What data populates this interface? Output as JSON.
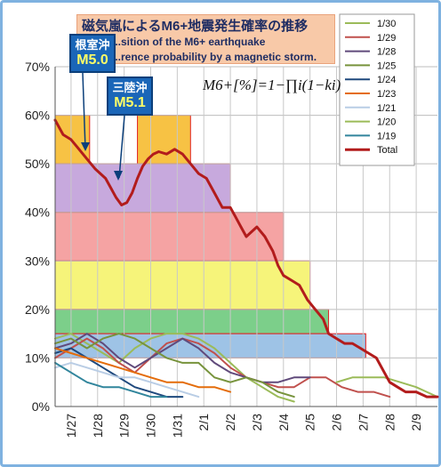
{
  "title": {
    "jp": "磁気嵐によるM6+地震発生確率の推移",
    "en_line1": "...sition of the M6+ earthquake",
    "en_line2": "...rence probability by a magnetic storm."
  },
  "formula": "M6+[%]=1−∏i(1−ki)",
  "callouts": [
    {
      "place": "根室沖",
      "mag": "M5.0"
    },
    {
      "place": "三陸沖",
      "mag": "M5.1"
    }
  ],
  "chart_data": {
    "type": "line",
    "ylim": [
      0,
      70
    ],
    "yticks": [
      "0%",
      "10%",
      "20%",
      "30%",
      "40%",
      "50%",
      "60%",
      "70%"
    ],
    "xticks": [
      "1/27",
      "1/28",
      "1/29",
      "1/30",
      "1/31",
      "2/1",
      "2/2",
      "2/3",
      "2/4",
      "2/5",
      "2/6",
      "2/7",
      "2/8",
      "2/9"
    ],
    "xrange": [
      26.4,
      40.8
    ],
    "grid": true,
    "legend_position": "top-right",
    "legend": [
      {
        "name": "1/30",
        "color": "#9bbb59"
      },
      {
        "name": "1/29",
        "color": "#c0504d"
      },
      {
        "name": "1/28",
        "color": "#604a7b"
      },
      {
        "name": "1/25",
        "color": "#77933c"
      },
      {
        "name": "1/24",
        "color": "#1f497d"
      },
      {
        "name": "1/23",
        "color": "#e46c0a"
      },
      {
        "name": "1/21",
        "color": "#b9cde5"
      },
      {
        "name": "1/20",
        "color": "#9bbb59"
      },
      {
        "name": "1/19",
        "color": "#31859c"
      },
      {
        "name": "Total",
        "color": "#b21c1c"
      }
    ],
    "bands": [
      {
        "x0": 26.4,
        "x1": 27.7,
        "y0": 50,
        "y1": 60,
        "fill": "#f7c244",
        "stroke": "#e02020"
      },
      {
        "x0": 29.5,
        "x1": 31.5,
        "y0": 50,
        "y1": 60,
        "fill": "#f7c244",
        "stroke": "#e02020"
      },
      {
        "x0": 26.4,
        "x1": 33.0,
        "y0": 40,
        "y1": 50,
        "fill": "#c7a9dd",
        "stroke": "#e02020"
      },
      {
        "x0": 26.4,
        "x1": 35.0,
        "y0": 30,
        "y1": 40,
        "fill": "#f5a3a3",
        "stroke": "#e02020"
      },
      {
        "x0": 26.4,
        "x1": 36.0,
        "y0": 20,
        "y1": 30,
        "fill": "#f6f47a",
        "stroke": "#e02020"
      },
      {
        "x0": 26.4,
        "x1": 36.7,
        "y0": 15,
        "y1": 20,
        "fill": "#7ccf8a",
        "stroke": "#e02020"
      },
      {
        "x0": 26.4,
        "x1": 38.1,
        "y0": 10,
        "y1": 15,
        "fill": "#9ec3e6",
        "stroke": "#e02020"
      }
    ],
    "series": [
      {
        "name": "Total",
        "color": "#b21c1c",
        "width": 3,
        "points": [
          [
            26.4,
            59
          ],
          [
            26.7,
            56
          ],
          [
            27.0,
            55
          ],
          [
            27.3,
            53
          ],
          [
            27.6,
            51
          ],
          [
            27.9,
            49
          ],
          [
            28.1,
            48
          ],
          [
            28.3,
            47
          ],
          [
            28.5,
            45
          ],
          [
            28.7,
            43
          ],
          [
            28.9,
            41.5
          ],
          [
            29.1,
            42
          ],
          [
            29.3,
            44
          ],
          [
            29.5,
            47
          ],
          [
            29.7,
            49.5
          ],
          [
            29.9,
            51
          ],
          [
            30.1,
            52
          ],
          [
            30.3,
            52.5
          ],
          [
            30.6,
            52
          ],
          [
            30.9,
            53
          ],
          [
            31.2,
            52
          ],
          [
            31.5,
            50
          ],
          [
            31.8,
            48
          ],
          [
            32.1,
            47
          ],
          [
            32.4,
            44
          ],
          [
            32.7,
            41
          ],
          [
            33.0,
            41
          ],
          [
            33.2,
            39
          ],
          [
            33.4,
            37
          ],
          [
            33.6,
            35
          ],
          [
            33.8,
            36
          ],
          [
            34.0,
            37
          ],
          [
            34.3,
            35
          ],
          [
            34.6,
            32
          ],
          [
            34.8,
            29
          ],
          [
            35.0,
            27
          ],
          [
            35.3,
            26
          ],
          [
            35.6,
            25
          ],
          [
            35.9,
            22
          ],
          [
            36.2,
            20
          ],
          [
            36.5,
            18
          ],
          [
            36.7,
            15
          ],
          [
            37.0,
            14
          ],
          [
            37.3,
            13
          ],
          [
            37.6,
            13
          ],
          [
            37.9,
            12
          ],
          [
            38.2,
            11
          ],
          [
            38.5,
            10
          ],
          [
            38.8,
            7
          ],
          [
            39.0,
            5
          ],
          [
            39.3,
            4
          ],
          [
            39.6,
            3
          ],
          [
            40.0,
            3
          ],
          [
            40.4,
            2
          ],
          [
            40.8,
            2
          ]
        ]
      },
      {
        "name": "1/30",
        "color": "#9bbb59",
        "width": 2,
        "points": [
          [
            26.4,
            14
          ],
          [
            27.0,
            15
          ],
          [
            27.6,
            13
          ],
          [
            28.2,
            11
          ],
          [
            28.8,
            9
          ],
          [
            29.4,
            12
          ],
          [
            30.0,
            14
          ],
          [
            30.6,
            15
          ],
          [
            31.2,
            15
          ],
          [
            31.8,
            14
          ],
          [
            32.4,
            12
          ],
          [
            33.0,
            9
          ],
          [
            33.6,
            6
          ],
          [
            34.2,
            4
          ],
          [
            34.8,
            2
          ],
          [
            35.4,
            1
          ]
        ]
      },
      {
        "name": "1/29",
        "color": "#c0504d",
        "width": 2,
        "points": [
          [
            26.4,
            10
          ],
          [
            27.0,
            12
          ],
          [
            27.6,
            14
          ],
          [
            28.2,
            12
          ],
          [
            28.8,
            9
          ],
          [
            29.4,
            7
          ],
          [
            30.0,
            10
          ],
          [
            30.6,
            13
          ],
          [
            31.2,
            14
          ],
          [
            31.8,
            13
          ],
          [
            32.4,
            11
          ],
          [
            33.0,
            8
          ],
          [
            33.6,
            6
          ],
          [
            34.2,
            5
          ],
          [
            34.8,
            4
          ],
          [
            35.4,
            4
          ],
          [
            36.0,
            6
          ],
          [
            36.6,
            6
          ],
          [
            37.2,
            4
          ],
          [
            37.8,
            3
          ],
          [
            38.4,
            3
          ],
          [
            39.0,
            2
          ]
        ]
      },
      {
        "name": "1/28",
        "color": "#604a7b",
        "width": 2,
        "points": [
          [
            26.4,
            12
          ],
          [
            27.0,
            13
          ],
          [
            27.6,
            15
          ],
          [
            28.2,
            13
          ],
          [
            28.8,
            10
          ],
          [
            29.4,
            8
          ],
          [
            30.0,
            10
          ],
          [
            30.6,
            12
          ],
          [
            31.2,
            14
          ],
          [
            31.8,
            12
          ],
          [
            32.4,
            9
          ],
          [
            33.0,
            7
          ],
          [
            33.6,
            6
          ],
          [
            34.2,
            5
          ],
          [
            34.8,
            5
          ],
          [
            35.4,
            6
          ],
          [
            36.0,
            6
          ]
        ]
      },
      {
        "name": "1/25",
        "color": "#77933c",
        "width": 2,
        "points": [
          [
            26.4,
            13
          ],
          [
            27.0,
            14
          ],
          [
            27.6,
            12
          ],
          [
            28.2,
            14
          ],
          [
            28.8,
            15
          ],
          [
            29.4,
            14
          ],
          [
            30.0,
            12
          ],
          [
            30.6,
            10
          ],
          [
            31.2,
            9
          ],
          [
            31.8,
            9
          ],
          [
            32.4,
            6
          ],
          [
            33.0,
            5
          ],
          [
            33.6,
            6
          ],
          [
            34.2,
            5
          ],
          [
            34.8,
            3
          ],
          [
            35.4,
            2
          ]
        ]
      },
      {
        "name": "1/24",
        "color": "#1f497d",
        "width": 2,
        "points": [
          [
            26.4,
            11
          ],
          [
            27.0,
            12
          ],
          [
            27.6,
            10
          ],
          [
            28.2,
            8
          ],
          [
            28.8,
            6
          ],
          [
            29.4,
            4
          ],
          [
            30.0,
            3
          ],
          [
            30.6,
            2
          ],
          [
            31.2,
            2
          ]
        ]
      },
      {
        "name": "1/23",
        "color": "#e46c0a",
        "width": 2,
        "points": [
          [
            26.4,
            12
          ],
          [
            27.0,
            11
          ],
          [
            27.6,
            10
          ],
          [
            28.2,
            9
          ],
          [
            28.8,
            8
          ],
          [
            29.4,
            7
          ],
          [
            30.0,
            6
          ],
          [
            30.6,
            5
          ],
          [
            31.2,
            5
          ],
          [
            31.8,
            4
          ],
          [
            32.4,
            4
          ],
          [
            33.0,
            3
          ]
        ]
      },
      {
        "name": "1/21",
        "color": "#b9cde5",
        "width": 2,
        "points": [
          [
            26.4,
            8
          ],
          [
            27.0,
            9
          ],
          [
            27.6,
            8
          ],
          [
            28.2,
            7
          ],
          [
            28.8,
            6
          ],
          [
            29.4,
            6
          ],
          [
            30.0,
            5
          ],
          [
            30.6,
            4
          ],
          [
            31.2,
            3
          ],
          [
            31.8,
            2
          ]
        ]
      },
      {
        "name": "1/20",
        "color": "#9bbb59",
        "width": 2,
        "points": [
          [
            37.0,
            5
          ],
          [
            37.6,
            6
          ],
          [
            38.2,
            6
          ],
          [
            38.8,
            6
          ],
          [
            39.4,
            5
          ],
          [
            40.0,
            4
          ],
          [
            40.8,
            2
          ]
        ]
      },
      {
        "name": "1/19",
        "color": "#31859c",
        "width": 2,
        "points": [
          [
            26.4,
            9
          ],
          [
            27.0,
            7
          ],
          [
            27.6,
            5
          ],
          [
            28.2,
            4
          ],
          [
            28.8,
            4
          ],
          [
            29.4,
            3
          ],
          [
            30.0,
            2
          ],
          [
            30.6,
            2
          ]
        ]
      }
    ]
  }
}
